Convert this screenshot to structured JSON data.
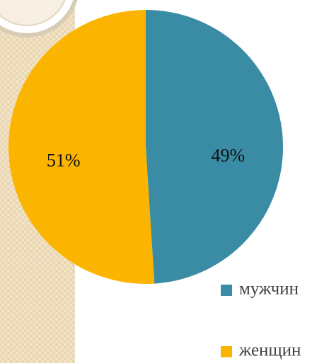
{
  "chart_data": {
    "type": "pie",
    "categories": [
      "мужчин",
      "женщин"
    ],
    "values": [
      49,
      51
    ],
    "value_labels": [
      "49%",
      "51%"
    ],
    "colors": [
      "#3a8ca4",
      "#fbb500"
    ],
    "legend": "right"
  }
}
